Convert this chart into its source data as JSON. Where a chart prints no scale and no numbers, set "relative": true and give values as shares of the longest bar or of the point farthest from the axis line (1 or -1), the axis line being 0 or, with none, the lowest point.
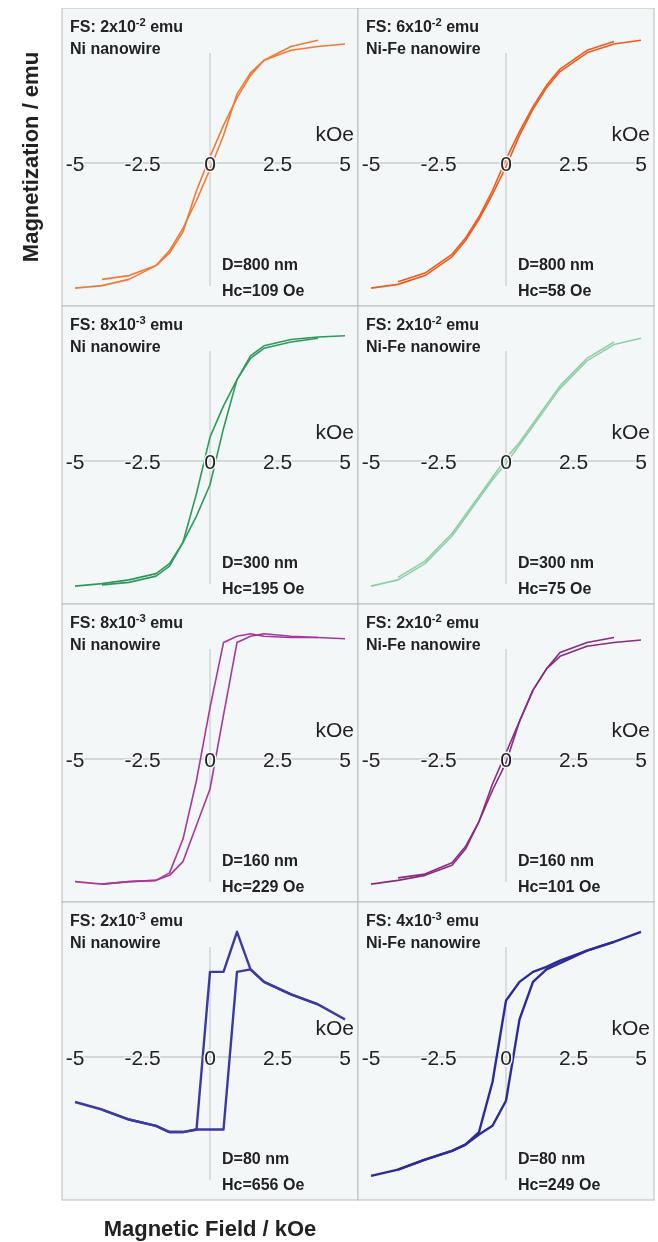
{
  "chart_data": [
    {
      "type": "line",
      "relative": true,
      "ylabel": "Magnetization / emu",
      "xlabel": "kOe",
      "xlim": [
        -5,
        5
      ],
      "xticks": [
        -5,
        -2.5,
        0,
        2.5,
        5
      ],
      "x": [
        -5,
        -4,
        -3,
        -2,
        -1.5,
        -1,
        -0.5,
        0,
        0.5,
        1,
        1.5,
        2,
        3,
        4,
        5
      ],
      "annotations": [
        "FS: 2x10$^{-2}$ emu",
        "Ni nanowire",
        "D=800 nm",
        "Hc=109 Oe"
      ],
      "series": [
        {
          "color": "#f07a34",
          "values": [
            -1,
            -0.98,
            -0.93,
            -0.82,
            -0.7,
            -0.52,
            -0.3,
            -0.05,
            0.22,
            0.55,
            0.72,
            0.82,
            0.9,
            0.93,
            0.95
          ]
        },
        {
          "color": "#f07a34",
          "x": [
            4,
            3,
            2,
            1.5,
            1,
            0.5,
            0,
            -0.5,
            -1,
            -1.5,
            -2,
            -3,
            -4
          ],
          "values": [
            0.98,
            0.93,
            0.82,
            0.7,
            0.52,
            0.3,
            0.05,
            -0.22,
            -0.55,
            -0.72,
            -0.82,
            -0.9,
            -0.93
          ]
        }
      ]
    },
    {
      "type": "line",
      "relative": true,
      "xlabel": "kOe",
      "xlim": [
        -5,
        5
      ],
      "xticks": [
        -5,
        -2.5,
        0,
        2.5,
        5
      ],
      "x": [
        -5,
        -4,
        -3,
        -2,
        -1.5,
        -1,
        -0.5,
        0,
        0.5,
        1,
        1.5,
        2,
        3,
        4,
        5
      ],
      "annotations": [
        "FS: 6x10$^{-2}$ emu",
        "Ni-Fe nanowire",
        "D=800 nm",
        "Hc=58 Oe"
      ],
      "series": [
        {
          "color": "#ec5a1c",
          "values": [
            -1,
            -0.97,
            -0.9,
            -0.75,
            -0.62,
            -0.45,
            -0.25,
            -0.03,
            0.22,
            0.43,
            0.6,
            0.73,
            0.88,
            0.95,
            0.98
          ]
        },
        {
          "color": "#ec5a1c",
          "x": [
            4,
            3,
            2,
            1.5,
            1,
            0.5,
            0,
            -0.5,
            -1,
            -1.5,
            -2,
            -3,
            -4
          ],
          "values": [
            0.97,
            0.9,
            0.75,
            0.62,
            0.45,
            0.25,
            0.03,
            -0.22,
            -0.43,
            -0.6,
            -0.73,
            -0.88,
            -0.95
          ]
        }
      ]
    },
    {
      "type": "line",
      "relative": true,
      "xlabel": "kOe",
      "xlim": [
        -5,
        5
      ],
      "xticks": [
        -5,
        -2.5,
        0,
        2.5,
        5
      ],
      "x": [
        -5,
        -4,
        -3,
        -2,
        -1.5,
        -1,
        -0.5,
        0,
        0.5,
        1,
        1.5,
        2,
        3,
        4,
        5
      ],
      "annotations": [
        "FS: 8x10$^{-3}$ emu",
        "Ni nanowire",
        "D=300 nm",
        "Hc=195 Oe"
      ],
      "series": [
        {
          "color": "#2e9a5a",
          "values": [
            -1,
            -0.98,
            -0.95,
            -0.9,
            -0.82,
            -0.65,
            -0.44,
            -0.19,
            0.26,
            0.65,
            0.84,
            0.92,
            0.97,
            0.99,
            1
          ]
        },
        {
          "color": "#2e9a5a",
          "x": [
            4,
            3,
            2,
            1.5,
            1,
            0.5,
            0,
            -0.5,
            -1,
            -1.5,
            -2,
            -3,
            -4
          ],
          "values": [
            0.98,
            0.95,
            0.9,
            0.82,
            0.65,
            0.44,
            0.19,
            -0.26,
            -0.65,
            -0.84,
            -0.92,
            -0.97,
            -0.99
          ]
        }
      ]
    },
    {
      "type": "line",
      "relative": true,
      "xlabel": "kOe",
      "xlim": [
        -5,
        5
      ],
      "xticks": [
        -5,
        -2.5,
        0,
        2.5,
        5
      ],
      "x": [
        -5,
        -4,
        -3,
        -2,
        -1.5,
        -1,
        -0.5,
        0,
        0.5,
        1,
        1.5,
        2,
        3,
        4,
        5
      ],
      "annotations": [
        "FS: 2x10$^{-2}$ emu",
        "Ni-Fe nanowire",
        "D=300 nm",
        "Hc=75 Oe"
      ],
      "series": [
        {
          "color": "#8fcfa8",
          "values": [
            -1,
            -0.95,
            -0.82,
            -0.6,
            -0.45,
            -0.3,
            -0.15,
            -0.02,
            0.13,
            0.28,
            0.43,
            0.58,
            0.8,
            0.93,
            0.98
          ]
        },
        {
          "color": "#8fcfa8",
          "x": [
            4,
            3,
            2,
            1.5,
            1,
            0.5,
            0,
            -0.5,
            -1,
            -1.5,
            -2,
            -3,
            -4
          ],
          "values": [
            0.95,
            0.82,
            0.6,
            0.45,
            0.3,
            0.15,
            0.02,
            -0.13,
            -0.28,
            -0.43,
            -0.58,
            -0.8,
            -0.93
          ]
        }
      ]
    },
    {
      "type": "line",
      "relative": true,
      "xlabel": "kOe",
      "xlim": [
        -5,
        5
      ],
      "xticks": [
        -5,
        -2.5,
        0,
        2.5,
        5
      ],
      "x": [
        -5,
        -4,
        -3,
        -2,
        -1.5,
        -1,
        -0.5,
        0,
        0.5,
        1,
        1.5,
        2,
        3,
        4,
        5
      ],
      "annotations": [
        "FS: 8x10$^{-3}$ emu",
        "Ni nanowire",
        "D=160 nm",
        "Hc=229 Oe"
      ],
      "series": [
        {
          "color": "#a8379a",
          "values": [
            -0.98,
            -1,
            -0.98,
            -0.97,
            -0.93,
            -0.82,
            -0.53,
            -0.24,
            0.35,
            0.93,
            0.98,
            1,
            0.98,
            0.97,
            0.96
          ]
        },
        {
          "color": "#a8379a",
          "x": [
            4,
            3,
            2,
            1.5,
            1,
            0.5,
            0,
            -0.5,
            -1,
            -1.5,
            -2,
            -3,
            -4
          ],
          "values": [
            0.97,
            0.97,
            0.98,
            1,
            0.98,
            0.93,
            0.41,
            -0.17,
            -0.64,
            -0.91,
            -0.97,
            -0.98,
            -1
          ]
        }
      ]
    },
    {
      "type": "line",
      "relative": true,
      "xlabel": "kOe",
      "xlim": [
        -5,
        5
      ],
      "xticks": [
        -5,
        -2.5,
        0,
        2.5,
        5
      ],
      "x": [
        -5,
        -4,
        -3,
        -2,
        -1.5,
        -1,
        -0.5,
        0,
        0.5,
        1,
        1.5,
        2,
        3,
        4,
        5
      ],
      "annotations": [
        "FS: 2x10$^{-2}$ emu",
        "Ni-Fe nanowire",
        "D=160 nm",
        "Hc=101 Oe"
      ],
      "series": [
        {
          "color": "#8a2a80",
          "values": [
            -1,
            -0.97,
            -0.93,
            -0.85,
            -0.72,
            -0.5,
            -0.25,
            -0.03,
            0.3,
            0.55,
            0.72,
            0.82,
            0.9,
            0.93,
            0.95
          ]
        },
        {
          "color": "#8a2a80",
          "x": [
            4,
            3,
            2,
            1.5,
            1,
            0.5,
            0,
            -0.5,
            -1,
            -1.5,
            -2,
            -3,
            -4
          ],
          "values": [
            0.97,
            0.93,
            0.85,
            0.72,
            0.55,
            0.3,
            0.05,
            -0.2,
            -0.5,
            -0.7,
            -0.83,
            -0.92,
            -0.95
          ]
        }
      ]
    },
    {
      "type": "line",
      "relative": true,
      "xlabel": "kOe",
      "xlim": [
        -5,
        5
      ],
      "xticks": [
        -5,
        -2.5,
        0,
        2.5,
        5
      ],
      "x": [
        -5,
        -4,
        -3,
        -2,
        -1.5,
        -1,
        -0.5,
        0,
        0.5,
        1,
        1.5,
        2,
        3,
        4,
        5
      ],
      "annotations": [
        "FS: 2x10$^{-3}$ emu",
        "Ni nanowire",
        "D=80 nm",
        "Hc=656 Oe",
        "Magnetic Field / kOe"
      ],
      "series": [
        {
          "color": "#3a3aa0",
          "values": [
            -0.36,
            -0.42,
            -0.5,
            -0.55,
            -0.6,
            -0.6,
            -0.58,
            -0.58,
            -0.58,
            0.68,
            0.7,
            0.6,
            0.5,
            0.42,
            0.3
          ]
        },
        {
          "color": "#3a3aa0",
          "x": [
            4,
            3,
            2,
            1.5,
            1,
            0.5,
            0,
            -0.5,
            -1,
            -1.5,
            -2,
            -3,
            -4
          ],
          "values": [
            0.42,
            0.5,
            0.6,
            0.7,
            1,
            0.68,
            0.68,
            -0.58,
            -0.6,
            -0.6,
            -0.55,
            -0.5,
            -0.42
          ]
        }
      ]
    },
    {
      "type": "line",
      "relative": true,
      "xlabel": "kOe",
      "xlim": [
        -5,
        5
      ],
      "xticks": [
        -5,
        -2.5,
        0,
        2.5,
        5
      ],
      "x": [
        -5,
        -4,
        -3,
        -2,
        -1.5,
        -1,
        -0.5,
        0,
        0.5,
        1,
        1.5,
        2,
        3,
        4,
        5
      ],
      "annotations": [
        "FS: 4x10$^{-3}$ emu",
        "Ni-Fe nanowire",
        "D=80 nm",
        "Hc=249 Oe"
      ],
      "series": [
        {
          "color": "#2c2c98",
          "values": [
            -0.95,
            -0.9,
            -0.82,
            -0.75,
            -0.7,
            -0.62,
            -0.55,
            -0.35,
            0.3,
            0.6,
            0.7,
            0.75,
            0.85,
            0.92,
            1
          ]
        },
        {
          "color": "#2c2c98",
          "x": [
            4,
            3,
            2,
            1.5,
            1,
            0.5,
            0,
            -0.5,
            -1,
            -1.5,
            -2,
            -3,
            -4
          ],
          "values": [
            0.92,
            0.85,
            0.77,
            0.72,
            0.68,
            0.6,
            0.45,
            -0.2,
            -0.6,
            -0.7,
            -0.75,
            -0.82,
            -0.9
          ]
        }
      ]
    }
  ]
}
